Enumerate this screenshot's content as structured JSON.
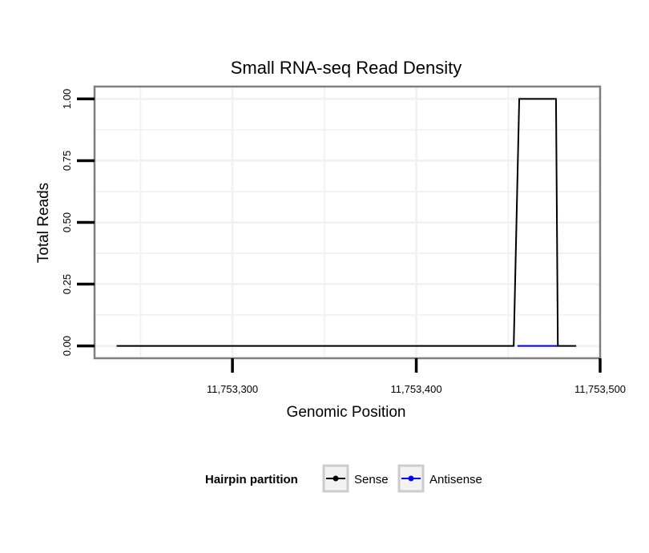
{
  "chart_data": {
    "type": "line",
    "title": "Small RNA-seq Read Density",
    "xlabel": "Genomic Position",
    "ylabel": "Total Reads",
    "xlim": [
      11753225,
      11753500
    ],
    "ylim": [
      -0.05,
      1.05
    ],
    "x_ticks": [
      11753300,
      11753400,
      11753500
    ],
    "x_tick_labels": [
      "11,753,300",
      "11,753,400",
      "11,753,500"
    ],
    "y_ticks": [
      0,
      0.25,
      0.5,
      0.75,
      1
    ],
    "y_tick_labels": [
      "0.00",
      "0.25",
      "0.50",
      "0.75",
      "1.00"
    ],
    "grid": true,
    "series": [
      {
        "name": "Sense",
        "color": "#000000",
        "x": [
          11753237,
          11753453,
          11753456,
          11753476,
          11753477,
          11753487
        ],
        "y": [
          0,
          0,
          1,
          1,
          0,
          0
        ]
      },
      {
        "name": "Antisense",
        "color": "#0000ff",
        "x": [
          11753455,
          11753477
        ],
        "y": [
          0,
          0
        ]
      }
    ],
    "legend": {
      "title": "Hairpin partition",
      "position": "bottom",
      "entries": [
        "Sense",
        "Antisense"
      ]
    }
  }
}
